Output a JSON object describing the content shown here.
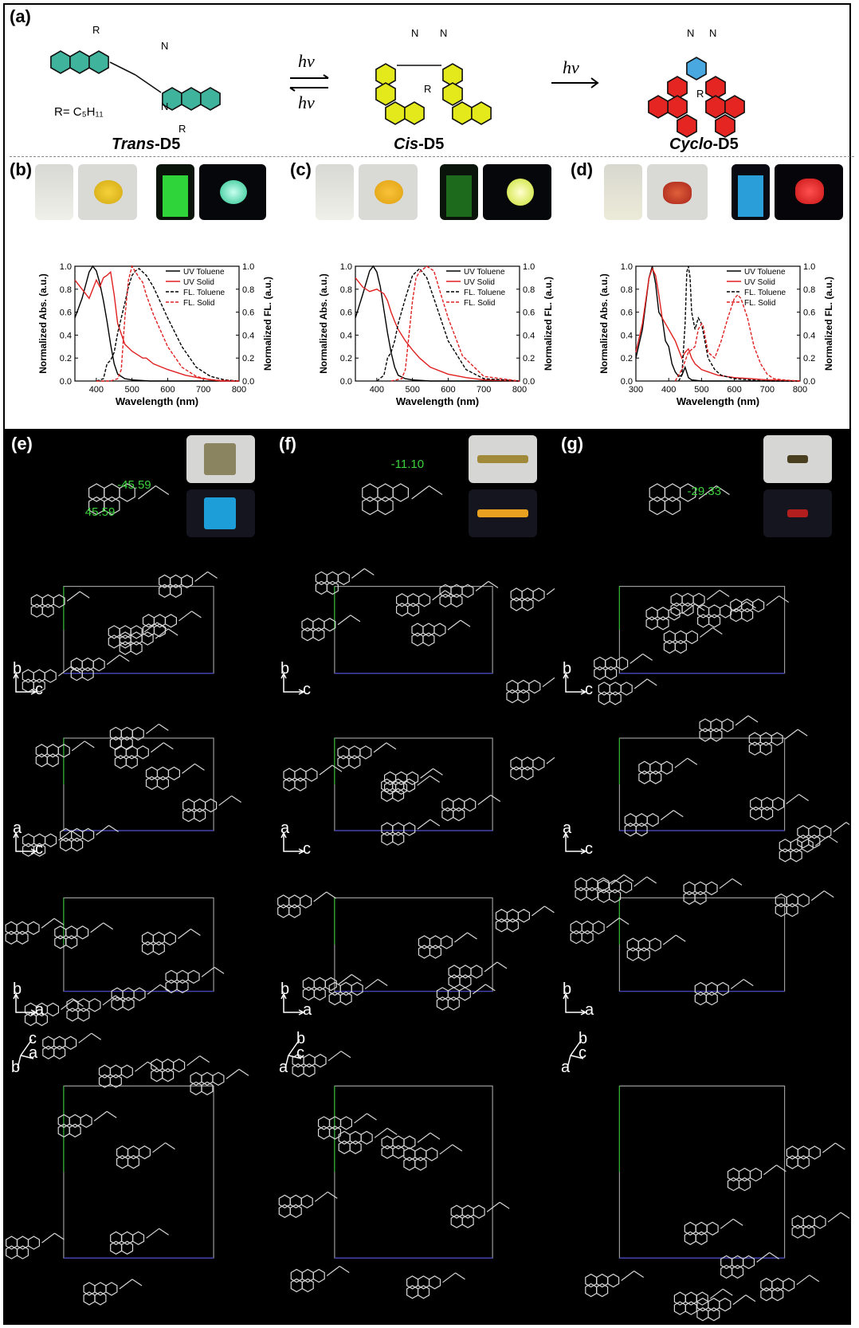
{
  "panels": {
    "a": {
      "label": "(a)"
    },
    "b": {
      "label": "(b)"
    },
    "c": {
      "label": "(c)"
    },
    "d": {
      "label": "(d)"
    },
    "e": {
      "label": "(e)"
    },
    "f": {
      "label": "(f)"
    },
    "g": {
      "label": "(g)"
    }
  },
  "scheme": {
    "r_group": "R= C₅H₁₁",
    "hv": "hv",
    "molecules": [
      {
        "prefix": "Trans",
        "suffix": "-D5",
        "color": "#3fb39b"
      },
      {
        "prefix": "Cis",
        "suffix": "-D5",
        "color": "#e3e91a"
      },
      {
        "prefix": "Cyclo",
        "suffix": "-D5",
        "color": "#e52521"
      }
    ],
    "atom_labels": {
      "N": "N",
      "R": "R"
    }
  },
  "angles": {
    "e1": "-45.59",
    "e2": "45.59",
    "f": "-11.10",
    "g": "-29.33"
  },
  "colors": {
    "angle": "#3bd13b",
    "uv": "#e02020",
    "fl": "#000000"
  },
  "chart_data": [
    {
      "type": "line",
      "panel": "b",
      "xlabel": "Wavelength (nm)",
      "ylabel": "Normalized Abs. (a.u.)",
      "y2label": "Normalized FL. (a.u.)",
      "xlim": [
        340,
        800
      ],
      "xticks": [
        400,
        500,
        600,
        700,
        800
      ],
      "ylim": [
        0,
        1.0
      ],
      "yticks": [
        "0.0",
        "0.2",
        "0.4",
        "0.6",
        "0.8",
        "1.0"
      ],
      "legend": [
        "UV Toluene",
        "UV Solid",
        "FL. Toluene",
        "FL. Solid"
      ],
      "legend_position": "top-right",
      "series": [
        {
          "name": "UV Toluene",
          "style": "solid",
          "color": "#000000",
          "x": [
            340,
            360,
            380,
            390,
            400,
            410,
            420,
            430,
            440,
            450,
            460,
            480,
            500,
            550,
            600,
            700,
            800
          ],
          "y": [
            0.55,
            0.72,
            0.95,
            1.0,
            0.96,
            0.85,
            0.7,
            0.52,
            0.32,
            0.15,
            0.06,
            0.02,
            0.01,
            0.0,
            0.0,
            0.0,
            0.0
          ]
        },
        {
          "name": "UV Solid",
          "style": "solid",
          "color": "#e02020",
          "x": [
            340,
            360,
            380,
            400,
            410,
            420,
            430,
            440,
            450,
            460,
            480,
            500,
            530,
            540,
            560,
            600,
            650,
            700,
            750,
            800
          ],
          "y": [
            0.88,
            0.8,
            0.72,
            0.88,
            0.82,
            0.9,
            0.92,
            0.95,
            0.75,
            0.5,
            0.32,
            0.26,
            0.2,
            0.2,
            0.15,
            0.1,
            0.05,
            0.02,
            0.0,
            0.0
          ]
        },
        {
          "name": "FL. Toluene",
          "style": "dashed",
          "color": "#000000",
          "x": [
            400,
            420,
            430,
            440,
            450,
            460,
            470,
            480,
            490,
            500,
            510,
            520,
            540,
            560,
            600,
            640,
            680,
            720,
            760,
            800
          ],
          "y": [
            0.0,
            0.02,
            0.15,
            0.18,
            0.25,
            0.42,
            0.55,
            0.68,
            0.82,
            0.92,
            0.96,
            0.98,
            0.92,
            0.82,
            0.55,
            0.3,
            0.12,
            0.04,
            0.01,
            0.0
          ]
        },
        {
          "name": "FL. Solid",
          "style": "dashed",
          "color": "#e02020",
          "x": [
            400,
            440,
            460,
            470,
            480,
            490,
            500,
            510,
            520,
            530,
            540,
            560,
            600,
            640,
            680,
            720,
            800
          ],
          "y": [
            0.0,
            0.0,
            0.02,
            0.1,
            0.55,
            0.88,
            1.0,
            0.95,
            0.9,
            0.86,
            0.75,
            0.58,
            0.3,
            0.12,
            0.04,
            0.01,
            0.0
          ]
        }
      ]
    },
    {
      "type": "line",
      "panel": "c",
      "xlabel": "Wavelength (nm)",
      "ylabel": "Normalized Abs. (a.u.)",
      "y2label": "Normalized FL. (a.u.)",
      "xlim": [
        340,
        800
      ],
      "xticks": [
        400,
        500,
        600,
        700,
        800
      ],
      "ylim": [
        0,
        1.0
      ],
      "yticks": [
        "0.0",
        "0.2",
        "0.4",
        "0.6",
        "0.8",
        "1.0"
      ],
      "legend": [
        "UV Toluene",
        "UV Solid",
        "FL. Toluene",
        "FL. Solid"
      ],
      "legend_position": "top-right",
      "series": [
        {
          "name": "UV Toluene",
          "style": "solid",
          "color": "#000000",
          "x": [
            340,
            360,
            380,
            390,
            400,
            410,
            420,
            430,
            440,
            450,
            460,
            480,
            500,
            550,
            800
          ],
          "y": [
            0.55,
            0.75,
            0.96,
            1.0,
            0.95,
            0.82,
            0.62,
            0.42,
            0.25,
            0.12,
            0.05,
            0.02,
            0.01,
            0.0,
            0.0
          ]
        },
        {
          "name": "UV Solid",
          "style": "solid",
          "color": "#e02020",
          "x": [
            340,
            360,
            380,
            400,
            420,
            430,
            440,
            450,
            460,
            480,
            500,
            520,
            550,
            600,
            650,
            700,
            800
          ],
          "y": [
            0.9,
            0.82,
            0.78,
            0.8,
            0.76,
            0.7,
            0.6,
            0.52,
            0.45,
            0.35,
            0.27,
            0.2,
            0.12,
            0.06,
            0.03,
            0.01,
            0.0
          ]
        },
        {
          "name": "FL. Toluene",
          "style": "dashed",
          "color": "#000000",
          "x": [
            400,
            420,
            430,
            440,
            450,
            460,
            480,
            500,
            520,
            540,
            560,
            600,
            650,
            700,
            800
          ],
          "y": [
            0.0,
            0.05,
            0.2,
            0.25,
            0.35,
            0.5,
            0.72,
            0.92,
            0.98,
            0.9,
            0.72,
            0.35,
            0.1,
            0.02,
            0.0
          ]
        },
        {
          "name": "FL. Solid",
          "style": "dashed",
          "color": "#e02020",
          "x": [
            440,
            470,
            480,
            490,
            500,
            510,
            520,
            540,
            560,
            580,
            600,
            640,
            700,
            800
          ],
          "y": [
            0.0,
            0.02,
            0.1,
            0.4,
            0.7,
            0.9,
            0.95,
            1.0,
            0.96,
            0.75,
            0.55,
            0.22,
            0.04,
            0.0
          ]
        }
      ]
    },
    {
      "type": "line",
      "panel": "d",
      "xlabel": "Wavelength (nm)",
      "ylabel": "Normalized Abs. (a.u.)",
      "y2label": "Normalized FL. (a.u.)",
      "xlim": [
        300,
        800
      ],
      "xticks": [
        300,
        400,
        500,
        600,
        700,
        800
      ],
      "ylim": [
        0,
        1.0
      ],
      "yticks": [
        "0.0",
        "0.2",
        "0.4",
        "0.6",
        "0.8",
        "1.0"
      ],
      "legend": [
        "UV Toluene",
        "UV Solid",
        "FL. Toluene",
        "FL. Solid"
      ],
      "legend_position": "top-right",
      "series": [
        {
          "name": "UV Toluene",
          "style": "solid",
          "color": "#000000",
          "x": [
            300,
            320,
            340,
            350,
            360,
            370,
            380,
            390,
            400,
            410,
            420,
            430,
            440,
            450,
            460,
            470,
            500,
            600,
            800
          ],
          "y": [
            0.2,
            0.45,
            0.9,
            1.0,
            0.85,
            0.6,
            0.55,
            0.35,
            0.3,
            0.15,
            0.08,
            0.04,
            0.05,
            0.12,
            0.03,
            0.01,
            0.0,
            0.0,
            0.0
          ]
        },
        {
          "name": "UV Solid",
          "style": "solid",
          "color": "#e02020",
          "x": [
            300,
            320,
            340,
            350,
            360,
            370,
            380,
            400,
            420,
            440,
            450,
            460,
            470,
            480,
            500,
            550,
            600,
            650,
            700,
            800
          ],
          "y": [
            0.25,
            0.5,
            0.9,
            0.98,
            0.92,
            0.75,
            0.55,
            0.45,
            0.35,
            0.2,
            0.25,
            0.28,
            0.2,
            0.15,
            0.1,
            0.05,
            0.03,
            0.02,
            0.01,
            0.0
          ]
        },
        {
          "name": "FL. Toluene",
          "style": "dashed",
          "color": "#000000",
          "x": [
            430,
            440,
            450,
            455,
            460,
            465,
            470,
            480,
            490,
            500,
            510,
            520,
            540,
            560,
            600,
            650,
            700,
            800
          ],
          "y": [
            0.0,
            0.05,
            0.5,
            0.95,
            1.0,
            0.9,
            0.6,
            0.45,
            0.55,
            0.5,
            0.35,
            0.2,
            0.1,
            0.05,
            0.02,
            0.01,
            0.0,
            0.0
          ]
        },
        {
          "name": "FL. Solid",
          "style": "dashed",
          "color": "#e02020",
          "x": [
            420,
            440,
            460,
            480,
            490,
            500,
            505,
            510,
            520,
            540,
            560,
            580,
            600,
            610,
            620,
            640,
            660,
            680,
            700,
            720,
            750,
            800
          ],
          "y": [
            0.0,
            0.1,
            0.25,
            0.3,
            0.45,
            0.5,
            0.48,
            0.4,
            0.25,
            0.2,
            0.35,
            0.55,
            0.72,
            0.75,
            0.72,
            0.55,
            0.3,
            0.15,
            0.06,
            0.02,
            0.01,
            0.0
          ]
        }
      ]
    }
  ],
  "crystal": {
    "rows": [
      {
        "a1": "",
        "a2": ""
      },
      {
        "a1": "b",
        "a2": "c"
      },
      {
        "a1": "a",
        "a2": "c"
      },
      {
        "a1": "b",
        "a2": "a"
      },
      {
        "a1": "",
        "a2": ""
      }
    ],
    "row5_axes": {
      "e": [
        "c",
        "a",
        "b"
      ],
      "f": [
        "b",
        "c",
        "a"
      ],
      "g": [
        "b",
        "c",
        "a"
      ]
    }
  }
}
